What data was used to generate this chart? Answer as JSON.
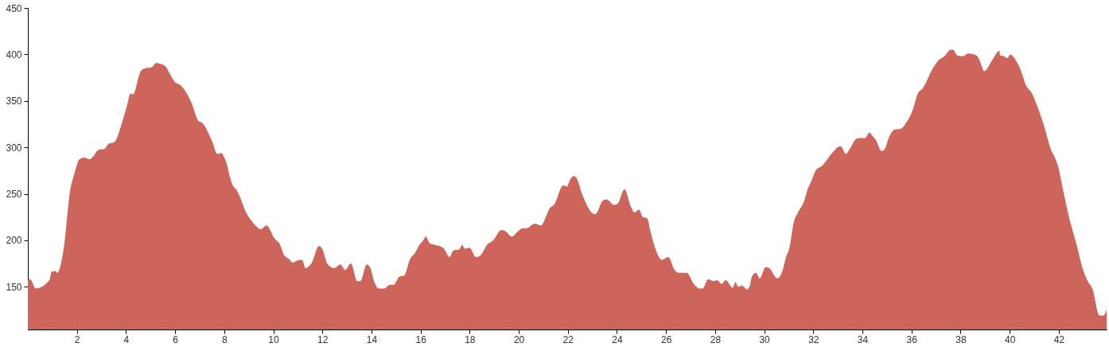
{
  "chart_data": {
    "type": "area",
    "color": "#cd655b",
    "x": [
      0,
      0.1,
      0.32,
      0.88,
      0.97,
      1.13,
      1.2,
      1.46,
      1.72,
      1.91,
      2.1,
      2.33,
      2.5,
      2.66,
      2.82,
      2.98,
      3.1,
      3.3,
      3.47,
      3.57,
      3.83,
      4.05,
      4.18,
      4.28,
      4.6,
      4.76,
      5.02,
      5.25,
      5.38,
      5.61,
      5.77,
      6.0,
      6.16,
      6.38,
      6.65,
      6.97,
      7.07,
      7.5,
      7.72,
      7.88,
      8.04,
      8.33,
      8.53,
      8.91,
      9.17,
      9.5,
      9.72,
      10.05,
      10.28,
      10.44,
      10.63,
      10.8,
      10.96,
      11.18,
      11.31,
      11.57,
      11.86,
      11.99,
      12.22,
      12.48,
      12.74,
      12.93,
      13.16,
      13.42,
      13.55,
      13.81,
      13.94,
      14.13,
      14.3,
      14.5,
      14.75,
      14.9,
      15.14,
      15.33,
      15.56,
      15.79,
      15.95,
      16.11,
      16.21,
      16.37,
      16.6,
      16.92,
      17.18,
      17.34,
      17.57,
      17.7,
      17.8,
      17.99,
      18.25,
      18.41,
      18.74,
      18.96,
      19.29,
      19.45,
      19.71,
      19.94,
      20.16,
      20.32,
      20.65,
      20.91,
      21.0,
      21.13,
      21.23,
      21.46,
      21.81,
      21.98,
      22.04,
      22.24,
      22.33,
      22.59,
      23.01,
      23.11,
      23.44,
      23.57,
      23.89,
      24.05,
      24.31,
      24.57,
      24.7,
      24.9,
      25.06,
      25.22,
      25.38,
      25.54,
      25.83,
      26.09,
      26.35,
      26.51,
      26.84,
      27.16,
      27.39,
      27.49,
      27.71,
      27.97,
      28.08,
      28.27,
      28.43,
      28.72,
      28.82,
      28.95,
      29.11,
      29.3,
      29.4,
      29.5,
      29.66,
      29.82,
      30.05,
      30.21,
      30.53,
      30.73,
      30.89,
      31.02,
      31.22,
      31.38,
      31.64,
      31.8,
      31.86,
      32.12,
      32.35,
      32.51,
      32.84,
      33.06,
      33.13,
      33.32,
      33.48,
      33.74,
      33.87,
      34.1,
      34.29,
      34.39,
      34.55,
      34.78,
      34.91,
      35.07,
      35.3,
      35.56,
      35.82,
      35.95,
      36.11,
      36.24,
      36.47,
      36.89,
      37.11,
      37.34,
      37.6,
      37.7,
      37.86,
      38.09,
      38.31,
      38.64,
      38.8,
      38.96,
      39.29,
      39.58,
      39.61,
      39.77,
      39.9,
      40.03,
      40.19,
      40.42,
      40.68,
      40.91,
      41.1,
      41.39,
      41.65,
      41.98,
      42.2,
      42.4,
      42.72,
      42.98,
      43.18,
      43.37,
      43.66,
      43.82,
      43.95
    ],
    "values": [
      157,
      158,
      148,
      157,
      166,
      167,
      165,
      191,
      253,
      273,
      287,
      289,
      287,
      290,
      296,
      298,
      298,
      304,
      305,
      307,
      326,
      346,
      358,
      357,
      382,
      385,
      386,
      391,
      390,
      387,
      380,
      370,
      368,
      362,
      349,
      328,
      327,
      307,
      293,
      294,
      287,
      260,
      253,
      229,
      219,
      212,
      216,
      202,
      195,
      184,
      180,
      176,
      178,
      179,
      170,
      176,
      194,
      191,
      174,
      170,
      174,
      168,
      175,
      156,
      156,
      174,
      171,
      154,
      148,
      148,
      152,
      152,
      161,
      162,
      179,
      187,
      195,
      200,
      204,
      197,
      195,
      192,
      182,
      189,
      190,
      195,
      191,
      192,
      182,
      183,
      196,
      200,
      211,
      210,
      204,
      209,
      213,
      213,
      218,
      216,
      219,
      227,
      233,
      239,
      259,
      258,
      262,
      269,
      268,
      249,
      229,
      228,
      243,
      244,
      238,
      240,
      255,
      236,
      230,
      233,
      225,
      224,
      208,
      193,
      179,
      182,
      168,
      165,
      165,
      152,
      148,
      148,
      158,
      156,
      157,
      153,
      157,
      149,
      155,
      150,
      151,
      147,
      150,
      161,
      165,
      159,
      171,
      170,
      159,
      166,
      182,
      191,
      221,
      230,
      243,
      257,
      260,
      276,
      280,
      285,
      296,
      301,
      301,
      293,
      298,
      309,
      310,
      310,
      316,
      313,
      308,
      296,
      298,
      310,
      319,
      320,
      328,
      334,
      345,
      357,
      364,
      386,
      394,
      398,
      405,
      405,
      399,
      398,
      401,
      399,
      392,
      382,
      394,
      404,
      399,
      398,
      396,
      400,
      396,
      385,
      366,
      358,
      346,
      324,
      300,
      279,
      251,
      227,
      196,
      169,
      156,
      148,
      119,
      119,
      125
    ],
    "xlim": [
      0,
      43.95
    ],
    "xticks": [
      2,
      4,
      6,
      8,
      10,
      12,
      14,
      16,
      18,
      20,
      22,
      24,
      26,
      28,
      30,
      32,
      34,
      36,
      38,
      40,
      42
    ],
    "ylim": [
      104,
      450
    ],
    "yticks": [
      150,
      200,
      250,
      300,
      350,
      400,
      450
    ]
  }
}
